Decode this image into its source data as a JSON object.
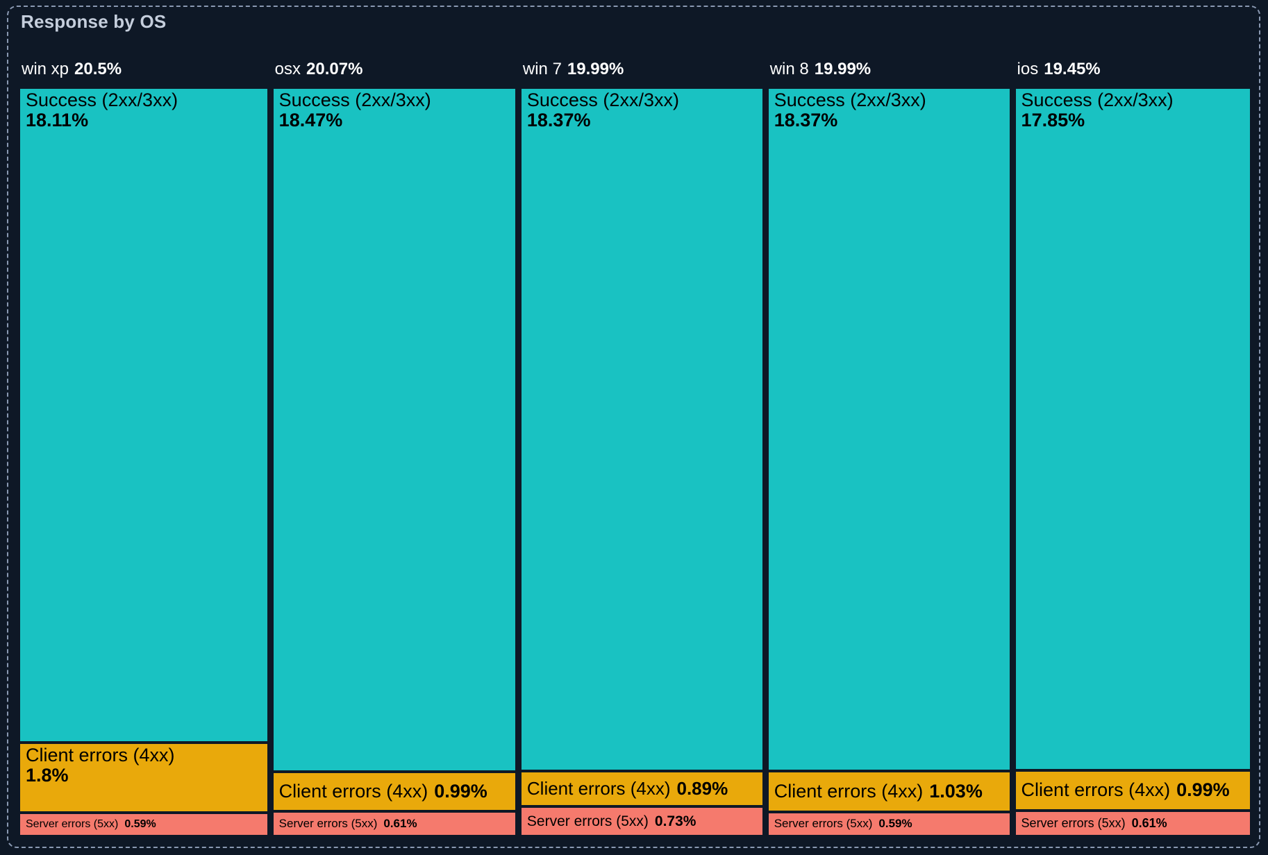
{
  "panel": {
    "title": "Response by OS"
  },
  "chart_data": {
    "type": "icicle",
    "unit": "%",
    "orientation": "columns-proportional-width, segments-proportional-height",
    "colors": {
      "success": "#19C2C2",
      "client_errors": "#E9A90B",
      "server_errors": "#F57A6D",
      "background": "#0E1826",
      "panel_border": "#8A99B2",
      "title_text": "#C5CEDC",
      "header_text": "#FFFFFF",
      "segment_text": "#000000"
    },
    "columns": [
      {
        "name": "win xp",
        "pct": "20.5%",
        "share": 20.5,
        "segments": [
          {
            "label": "Success (2xx/3xx)",
            "pct": "18.11%",
            "value": 18.11,
            "kind": "success"
          },
          {
            "label": "Client errors (4xx)",
            "pct": "1.8%",
            "value": 1.8,
            "kind": "client_errors"
          },
          {
            "label": "Server errors (5xx)",
            "pct": "0.59%",
            "value": 0.59,
            "kind": "server_errors"
          }
        ]
      },
      {
        "name": "osx",
        "pct": "20.07%",
        "share": 20.07,
        "segments": [
          {
            "label": "Success (2xx/3xx)",
            "pct": "18.47%",
            "value": 18.47,
            "kind": "success"
          },
          {
            "label": "Client errors (4xx)",
            "pct": "0.99%",
            "value": 0.99,
            "kind": "client_errors"
          },
          {
            "label": "Server errors (5xx)",
            "pct": "0.61%",
            "value": 0.61,
            "kind": "server_errors"
          }
        ]
      },
      {
        "name": "win 7",
        "pct": "19.99%",
        "share": 19.99,
        "segments": [
          {
            "label": "Success (2xx/3xx)",
            "pct": "18.37%",
            "value": 18.37,
            "kind": "success"
          },
          {
            "label": "Client errors (4xx)",
            "pct": "0.89%",
            "value": 0.89,
            "kind": "client_errors"
          },
          {
            "label": "Server errors (5xx)",
            "pct": "0.73%",
            "value": 0.73,
            "kind": "server_errors"
          }
        ]
      },
      {
        "name": "win 8",
        "pct": "19.99%",
        "share": 19.99,
        "segments": [
          {
            "label": "Success (2xx/3xx)",
            "pct": "18.37%",
            "value": 18.37,
            "kind": "success"
          },
          {
            "label": "Client errors (4xx)",
            "pct": "1.03%",
            "value": 1.03,
            "kind": "client_errors"
          },
          {
            "label": "Server errors (5xx)",
            "pct": "0.59%",
            "value": 0.59,
            "kind": "server_errors"
          }
        ]
      },
      {
        "name": "ios",
        "pct": "19.45%",
        "share": 19.45,
        "segments": [
          {
            "label": "Success (2xx/3xx)",
            "pct": "17.85%",
            "value": 17.85,
            "kind": "success"
          },
          {
            "label": "Client errors (4xx)",
            "pct": "0.99%",
            "value": 0.99,
            "kind": "client_errors"
          },
          {
            "label": "Server errors (5xx)",
            "pct": "0.61%",
            "value": 0.61,
            "kind": "server_errors"
          }
        ]
      }
    ]
  }
}
